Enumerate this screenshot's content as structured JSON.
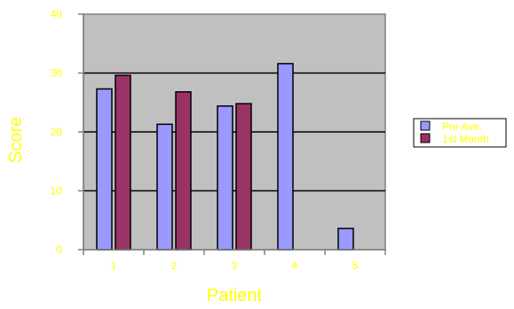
{
  "chart_data": {
    "type": "bar",
    "categories": [
      "1",
      "2",
      "3",
      "4",
      "5"
    ],
    "series": [
      {
        "name": "Pre Ave.",
        "values": [
          27.3,
          21.3,
          24.4,
          31.6,
          3.6
        ],
        "color": "#9999ff"
      },
      {
        "name": "1st Month",
        "values": [
          29.6,
          26.8,
          24.8,
          null,
          null
        ],
        "color": "#993366"
      }
    ],
    "xlabel": "Patient",
    "ylabel": "Score",
    "ylim": [
      0,
      40
    ],
    "yticks": [
      0,
      10,
      20,
      30,
      40
    ],
    "grid": true,
    "legend": "right",
    "colors": {
      "plot_area": "#c0c0c0",
      "text": "#ffff00",
      "gridline": "#000000",
      "border": "#808080"
    }
  }
}
